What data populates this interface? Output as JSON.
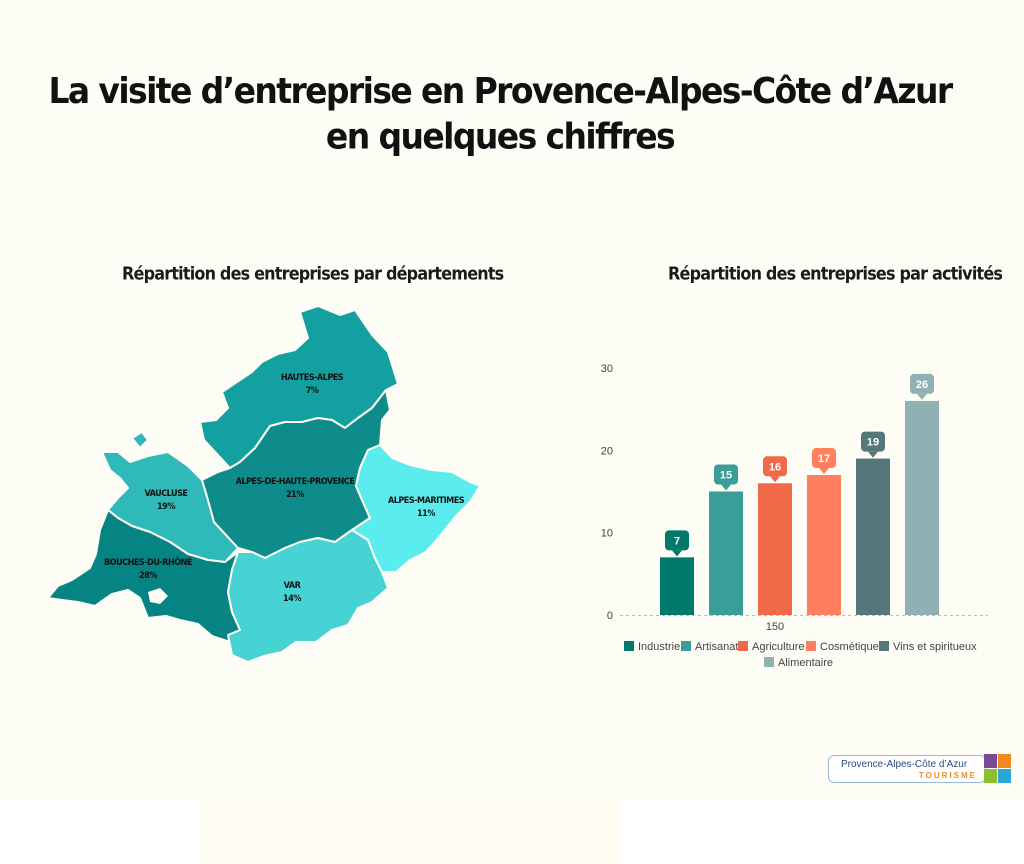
{
  "title": {
    "line1": "La visite d’entreprise en Provence-Alpes-Côte d’Azur",
    "line2": "en quelques chiffres"
  },
  "map": {
    "subtitle": "Répartition des entreprises par départements",
    "regions": [
      {
        "id": "hautes-alpes",
        "name": "HAUTES-ALPES",
        "value": "7%",
        "color": "#14a0a0"
      },
      {
        "id": "alpes-de-haute-provence",
        "name": "ALPES-DE-HAUTE-PROVENCE",
        "value": "21%",
        "color": "#0e8c8c"
      },
      {
        "id": "vaucluse",
        "name": "VAUCLUSE",
        "value": "19%",
        "color": "#2fb9b9"
      },
      {
        "id": "bouches-du-rhone",
        "name": "BOUCHES-DU-RHÔNE",
        "value": "28%",
        "color": "#068484"
      },
      {
        "id": "var",
        "name": "VAR",
        "value": "14%",
        "color": "#47d3d3"
      },
      {
        "id": "alpes-maritimes",
        "name": "ALPES-MARITIMES",
        "value": "11%",
        "color": "#5beced"
      }
    ]
  },
  "chart_data": {
    "type": "bar",
    "title": "Répartition des entreprises par activités",
    "categories": [
      "150"
    ],
    "series": [
      {
        "name": "Industrie",
        "values": [
          7
        ],
        "color": "#00796b"
      },
      {
        "name": "Artisanat",
        "values": [
          15
        ],
        "color": "#3a9e98"
      },
      {
        "name": "Agriculture",
        "values": [
          16
        ],
        "color": "#f06a4a"
      },
      {
        "name": "Cosmétique",
        "values": [
          17
        ],
        "color": "#ff7f5e"
      },
      {
        "name": "Vins et spiritueux",
        "values": [
          19
        ],
        "color": "#56777a"
      },
      {
        "name": "Alimentaire",
        "values": [
          26
        ],
        "color": "#8fb1b4"
      }
    ],
    "ylim": [
      0,
      30
    ],
    "yticks": [
      0,
      10,
      20,
      30
    ],
    "xlabel": "",
    "ylabel": "",
    "data_labels": true,
    "legend_position": "bottom",
    "grid": false
  },
  "logo": {
    "text": "Provence-Alpes-Côte d’Azur",
    "sub": "TOURISME"
  }
}
